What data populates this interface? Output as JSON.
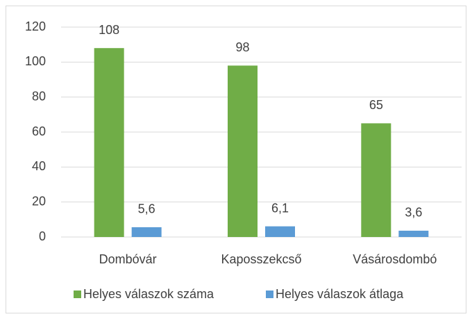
{
  "chart_data": {
    "type": "bar",
    "categories": [
      "Dombóvár",
      "Kaposszekcső",
      "Vásárosdombó"
    ],
    "series": [
      {
        "name": "Helyes válaszok száma",
        "color": "#70ad47",
        "values": [
          108,
          98,
          65
        ]
      },
      {
        "name": "Helyes válaszok átlaga",
        "color": "#5b9bd5",
        "values": [
          5.6,
          6.1,
          3.6
        ],
        "value_labels": [
          "5,6",
          "6,1",
          "3,6"
        ]
      }
    ],
    "ylim": [
      0,
      120
    ],
    "yticks": [
      0,
      20,
      40,
      60,
      80,
      100,
      120
    ],
    "grid": true,
    "legend": "bottom"
  }
}
